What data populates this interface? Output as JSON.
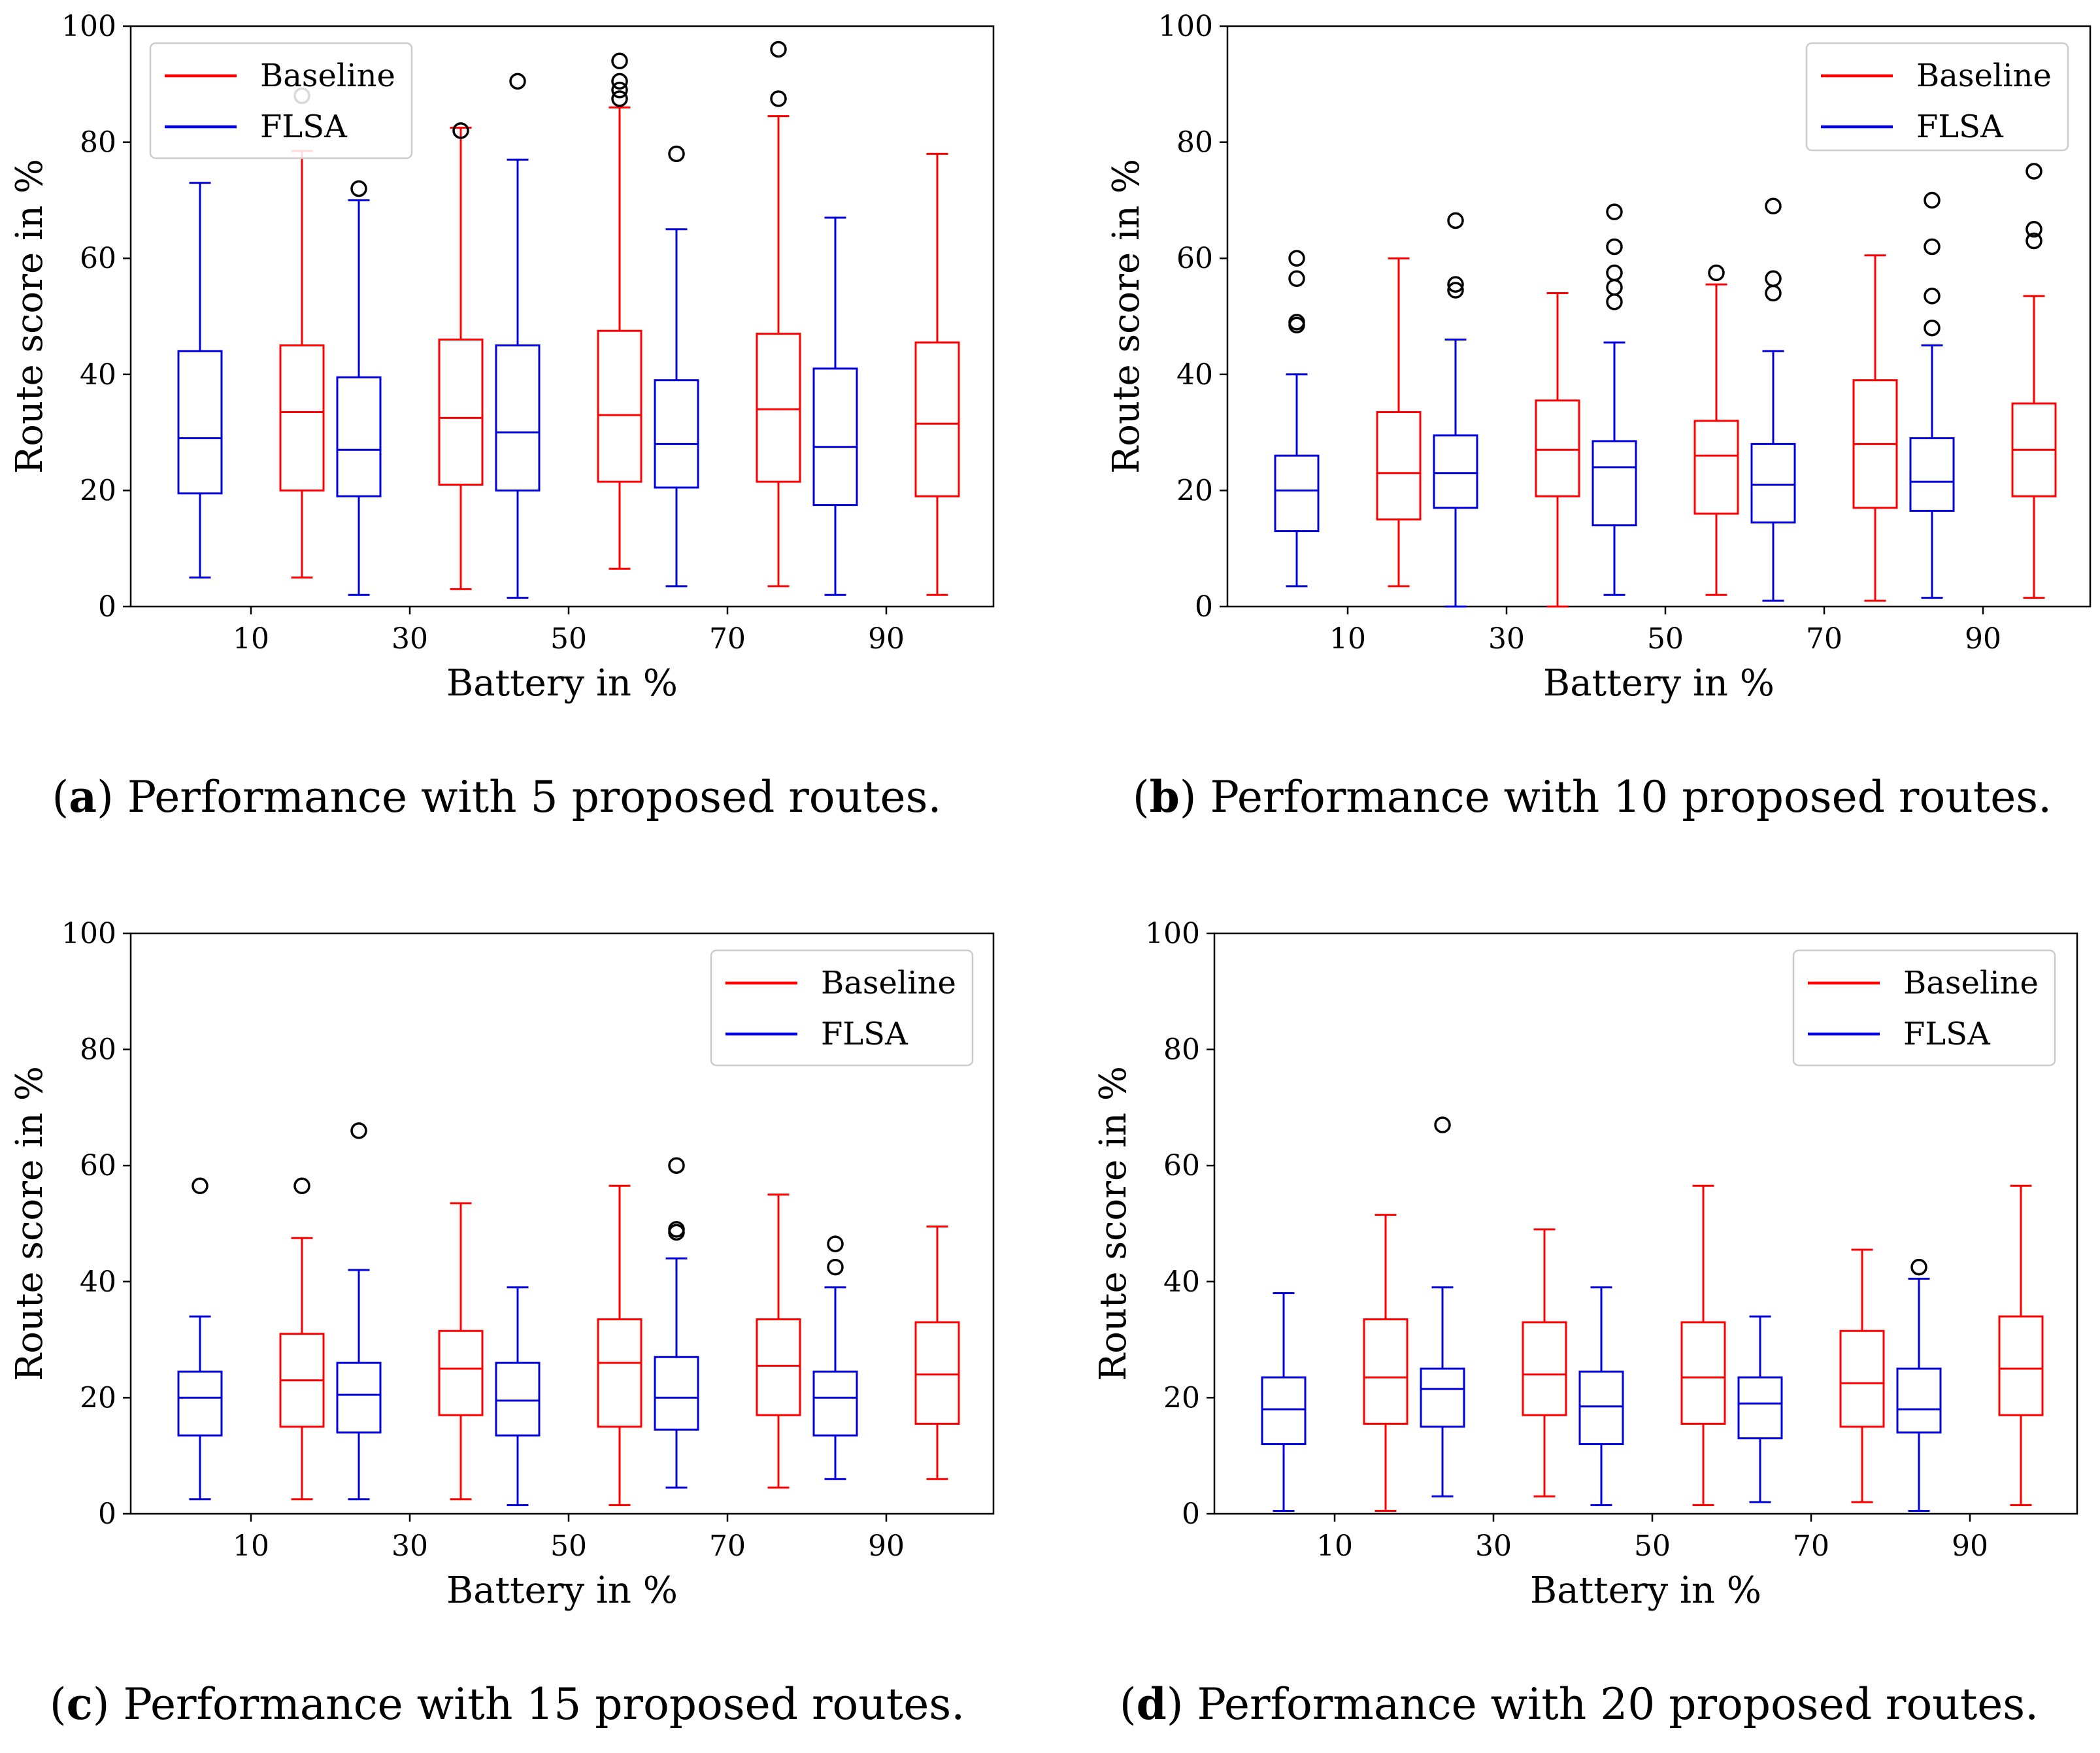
{
  "colors": {
    "baseline": "#ff0000",
    "flsa": "#0000dd",
    "axis": "#000000",
    "outlier": "#000000"
  },
  "chart_data": [
    {
      "type": "box",
      "panel": "a",
      "caption_label": "a",
      "caption_text": " Performance with 5 proposed routes.",
      "xlabel": "Battery in %",
      "ylabel": "Route score in %",
      "ylim": [
        0,
        100
      ],
      "yticks": [
        0,
        20,
        40,
        60,
        80,
        100
      ],
      "categories": [
        "10",
        "30",
        "50",
        "70",
        "90"
      ],
      "legend": {
        "position": "top-left",
        "entries": [
          "Baseline",
          "FLSA"
        ]
      },
      "series": [
        {
          "name": "FLSA",
          "color": "flsa",
          "boxes": [
            {
              "whislo": 5,
              "q1": 19.5,
              "med": 29,
              "q3": 44,
              "whishi": 73,
              "fliers": []
            },
            {
              "whislo": 2,
              "q1": 19,
              "med": 27,
              "q3": 39.5,
              "whishi": 70,
              "fliers": [
                72
              ]
            },
            {
              "whislo": 1.5,
              "q1": 20,
              "med": 30,
              "q3": 45,
              "whishi": 77,
              "fliers": [
                90.5
              ]
            },
            {
              "whislo": 3.5,
              "q1": 20.5,
              "med": 28,
              "q3": 39,
              "whishi": 65,
              "fliers": [
                78
              ]
            },
            {
              "whislo": 2,
              "q1": 17.5,
              "med": 27.5,
              "q3": 41,
              "whishi": 67,
              "fliers": []
            }
          ]
        },
        {
          "name": "Baseline",
          "color": "baseline",
          "boxes": [
            {
              "whislo": 5,
              "q1": 20,
              "med": 33.5,
              "q3": 45,
              "whishi": 78.5,
              "fliers": [
                88
              ]
            },
            {
              "whislo": 3,
              "q1": 21,
              "med": 32.5,
              "q3": 46,
              "whishi": 82.5,
              "fliers": [
                82
              ]
            },
            {
              "whislo": 6.5,
              "q1": 21.5,
              "med": 33,
              "q3": 47.5,
              "whishi": 86,
              "fliers": [
                87.5,
                89,
                90.5,
                94
              ]
            },
            {
              "whislo": 3.5,
              "q1": 21.5,
              "med": 34,
              "q3": 47,
              "whishi": 84.5,
              "fliers": [
                87.5,
                96
              ]
            },
            {
              "whislo": 2,
              "q1": 19,
              "med": 31.5,
              "q3": 45.5,
              "whishi": 78,
              "fliers": []
            }
          ]
        }
      ]
    },
    {
      "type": "box",
      "panel": "b",
      "caption_label": "b",
      "caption_text": " Performance with 10 proposed routes.",
      "xlabel": "Battery in %",
      "ylabel": "Route score in %",
      "ylim": [
        0,
        100
      ],
      "yticks": [
        0,
        20,
        40,
        60,
        80,
        100
      ],
      "categories": [
        "10",
        "30",
        "50",
        "70",
        "90"
      ],
      "legend": {
        "position": "top-right",
        "entries": [
          "Baseline",
          "FLSA"
        ]
      },
      "series": [
        {
          "name": "FLSA",
          "color": "flsa",
          "boxes": [
            {
              "whislo": 3.5,
              "q1": 13,
              "med": 20,
              "q3": 26,
              "whishi": 40,
              "fliers": [
                48.5,
                49,
                56.5,
                60
              ]
            },
            {
              "whislo": 0,
              "q1": 17,
              "med": 23,
              "q3": 29.5,
              "whishi": 46,
              "fliers": [
                54.5,
                55.5,
                66.5
              ]
            },
            {
              "whislo": 2,
              "q1": 14,
              "med": 24,
              "q3": 28.5,
              "whishi": 45.5,
              "fliers": [
                52.5,
                55,
                57.5,
                62,
                68
              ]
            },
            {
              "whislo": 1,
              "q1": 14.5,
              "med": 21,
              "q3": 28,
              "whishi": 44,
              "fliers": [
                54,
                56.5,
                69
              ]
            },
            {
              "whislo": 1.5,
              "q1": 16.5,
              "med": 21.5,
              "q3": 29,
              "whishi": 45,
              "fliers": [
                48,
                53.5,
                62,
                70
              ]
            }
          ]
        },
        {
          "name": "Baseline",
          "color": "baseline",
          "boxes": [
            {
              "whislo": 3.5,
              "q1": 15,
              "med": 23,
              "q3": 33.5,
              "whishi": 60,
              "fliers": []
            },
            {
              "whislo": 0,
              "q1": 19,
              "med": 27,
              "q3": 35.5,
              "whishi": 54,
              "fliers": []
            },
            {
              "whislo": 2,
              "q1": 16,
              "med": 26,
              "q3": 32,
              "whishi": 55.5,
              "fliers": [
                57.5
              ]
            },
            {
              "whislo": 1,
              "q1": 17,
              "med": 28,
              "q3": 39,
              "whishi": 60.5,
              "fliers": []
            },
            {
              "whislo": 1.5,
              "q1": 19,
              "med": 27,
              "q3": 35,
              "whishi": 53.5,
              "fliers": [
                63,
                65,
                75
              ]
            }
          ]
        }
      ]
    },
    {
      "type": "box",
      "panel": "c",
      "caption_label": "c",
      "caption_text": " Performance with 15 proposed routes.",
      "xlabel": "Battery in %",
      "ylabel": "Route score in %",
      "ylim": [
        0,
        100
      ],
      "yticks": [
        0,
        20,
        40,
        60,
        80,
        100
      ],
      "categories": [
        "10",
        "30",
        "50",
        "70",
        "90"
      ],
      "legend": {
        "position": "top-right",
        "entries": [
          "Baseline",
          "FLSA"
        ]
      },
      "series": [
        {
          "name": "FLSA",
          "color": "flsa",
          "boxes": [
            {
              "whislo": 2.5,
              "q1": 13.5,
              "med": 20,
              "q3": 24.5,
              "whishi": 34,
              "fliers": [
                56.5
              ]
            },
            {
              "whislo": 2.5,
              "q1": 14,
              "med": 20.5,
              "q3": 26,
              "whishi": 42,
              "fliers": [
                66
              ]
            },
            {
              "whislo": 1.5,
              "q1": 13.5,
              "med": 19.5,
              "q3": 26,
              "whishi": 39,
              "fliers": []
            },
            {
              "whislo": 4.5,
              "q1": 14.5,
              "med": 20,
              "q3": 27,
              "whishi": 44,
              "fliers": [
                48.5,
                49,
                60
              ]
            },
            {
              "whislo": 6,
              "q1": 13.5,
              "med": 20,
              "q3": 24.5,
              "whishi": 39,
              "fliers": [
                42.5,
                46.5
              ]
            }
          ]
        },
        {
          "name": "Baseline",
          "color": "baseline",
          "boxes": [
            {
              "whislo": 2.5,
              "q1": 15,
              "med": 23,
              "q3": 31,
              "whishi": 47.5,
              "fliers": [
                56.5
              ]
            },
            {
              "whislo": 2.5,
              "q1": 17,
              "med": 25,
              "q3": 31.5,
              "whishi": 53.5,
              "fliers": []
            },
            {
              "whislo": 1.5,
              "q1": 15,
              "med": 26,
              "q3": 33.5,
              "whishi": 56.5,
              "fliers": []
            },
            {
              "whislo": 4.5,
              "q1": 17,
              "med": 25.5,
              "q3": 33.5,
              "whishi": 55,
              "fliers": []
            },
            {
              "whislo": 6,
              "q1": 15.5,
              "med": 24,
              "q3": 33,
              "whishi": 49.5,
              "fliers": []
            }
          ]
        }
      ]
    },
    {
      "type": "box",
      "panel": "d",
      "caption_label": "d",
      "caption_text": " Performance with 20 proposed routes.",
      "xlabel": "Battery in %",
      "ylabel": "Route score in %",
      "ylim": [
        0,
        100
      ],
      "yticks": [
        0,
        20,
        40,
        60,
        80,
        100
      ],
      "categories": [
        "10",
        "30",
        "50",
        "70",
        "90"
      ],
      "legend": {
        "position": "top-right",
        "entries": [
          "Baseline",
          "FLSA"
        ]
      },
      "series": [
        {
          "name": "FLSA",
          "color": "flsa",
          "boxes": [
            {
              "whislo": 0.5,
              "q1": 12,
              "med": 18,
              "q3": 23.5,
              "whishi": 38,
              "fliers": []
            },
            {
              "whislo": 3,
              "q1": 15,
              "med": 21.5,
              "q3": 25,
              "whishi": 39,
              "fliers": [
                67
              ]
            },
            {
              "whislo": 1.5,
              "q1": 12,
              "med": 18.5,
              "q3": 24.5,
              "whishi": 39,
              "fliers": []
            },
            {
              "whislo": 2,
              "q1": 13,
              "med": 19,
              "q3": 23.5,
              "whishi": 34,
              "fliers": []
            },
            {
              "whislo": 0.5,
              "q1": 14,
              "med": 18,
              "q3": 25,
              "whishi": 40.5,
              "fliers": [
                42.5
              ]
            }
          ]
        },
        {
          "name": "Baseline",
          "color": "baseline",
          "boxes": [
            {
              "whislo": 0.5,
              "q1": 15.5,
              "med": 23.5,
              "q3": 33.5,
              "whishi": 51.5,
              "fliers": []
            },
            {
              "whislo": 3,
              "q1": 17,
              "med": 24,
              "q3": 33,
              "whishi": 49,
              "fliers": []
            },
            {
              "whislo": 1.5,
              "q1": 15.5,
              "med": 23.5,
              "q3": 33,
              "whishi": 56.5,
              "fliers": []
            },
            {
              "whislo": 2,
              "q1": 15,
              "med": 22.5,
              "q3": 31.5,
              "whishi": 45.5,
              "fliers": []
            },
            {
              "whislo": 1.5,
              "q1": 17,
              "med": 25,
              "q3": 34,
              "whishi": 56.5,
              "fliers": []
            }
          ]
        }
      ]
    }
  ]
}
